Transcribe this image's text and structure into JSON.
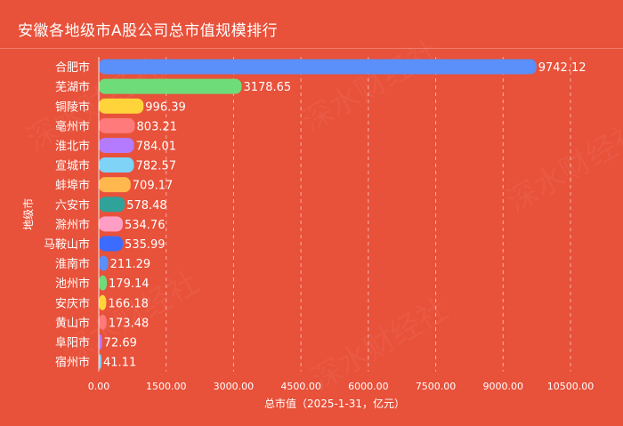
{
  "title": "安徽各地级市A股公司总市值规模排行",
  "chart_data": {
    "type": "bar",
    "orientation": "horizontal",
    "categories": [
      "合肥市",
      "芜湖市",
      "铜陵市",
      "亳州市",
      "淮北市",
      "宣城市",
      "蚌埠市",
      "六安市",
      "滁州市",
      "马鞍山市",
      "淮南市",
      "池州市",
      "安庆市",
      "黄山市",
      "阜阳市",
      "宿州市"
    ],
    "values": [
      9742.12,
      3178.65,
      996.39,
      803.21,
      784.01,
      782.57,
      709.17,
      578.48,
      534.76,
      535.99,
      211.29,
      179.14,
      166.18,
      173.48,
      72.69,
      41.11
    ],
    "value_labels": [
      "9742.12",
      "3178.65",
      "996.39",
      "803.21",
      "784.01",
      "782.57",
      "709.17",
      "578.48",
      "534.76",
      "535.99",
      "211.29",
      "179.14",
      "166.18",
      "173.48",
      "72.69",
      "41.11"
    ],
    "bar_colors": [
      "#5b8ff9",
      "#6fdc7a",
      "#ffd43b",
      "#ff7a7a",
      "#b57bff",
      "#7fd3f7",
      "#ffb84d",
      "#2fa39a",
      "#ff9ec4",
      "#3b6cff",
      "#5b8ff9",
      "#6fdc7a",
      "#ffd43b",
      "#ff7a7a",
      "#b57bff",
      "#7fd3f7"
    ],
    "xlabel": "总市值（2025-1-31，亿元）",
    "ylabel": "地级市",
    "xlim": [
      0,
      10500
    ],
    "xticks": [
      0,
      1500,
      3000,
      4500,
      6000,
      7500,
      9000,
      10500
    ],
    "xtick_labels": [
      "0.00",
      "1500.00",
      "3000.00",
      "4500.00",
      "6000.00",
      "7500.00",
      "9000.00",
      "10500.00"
    ],
    "grid": "vertical-dashed"
  },
  "watermark": "财经社 深水财经社"
}
